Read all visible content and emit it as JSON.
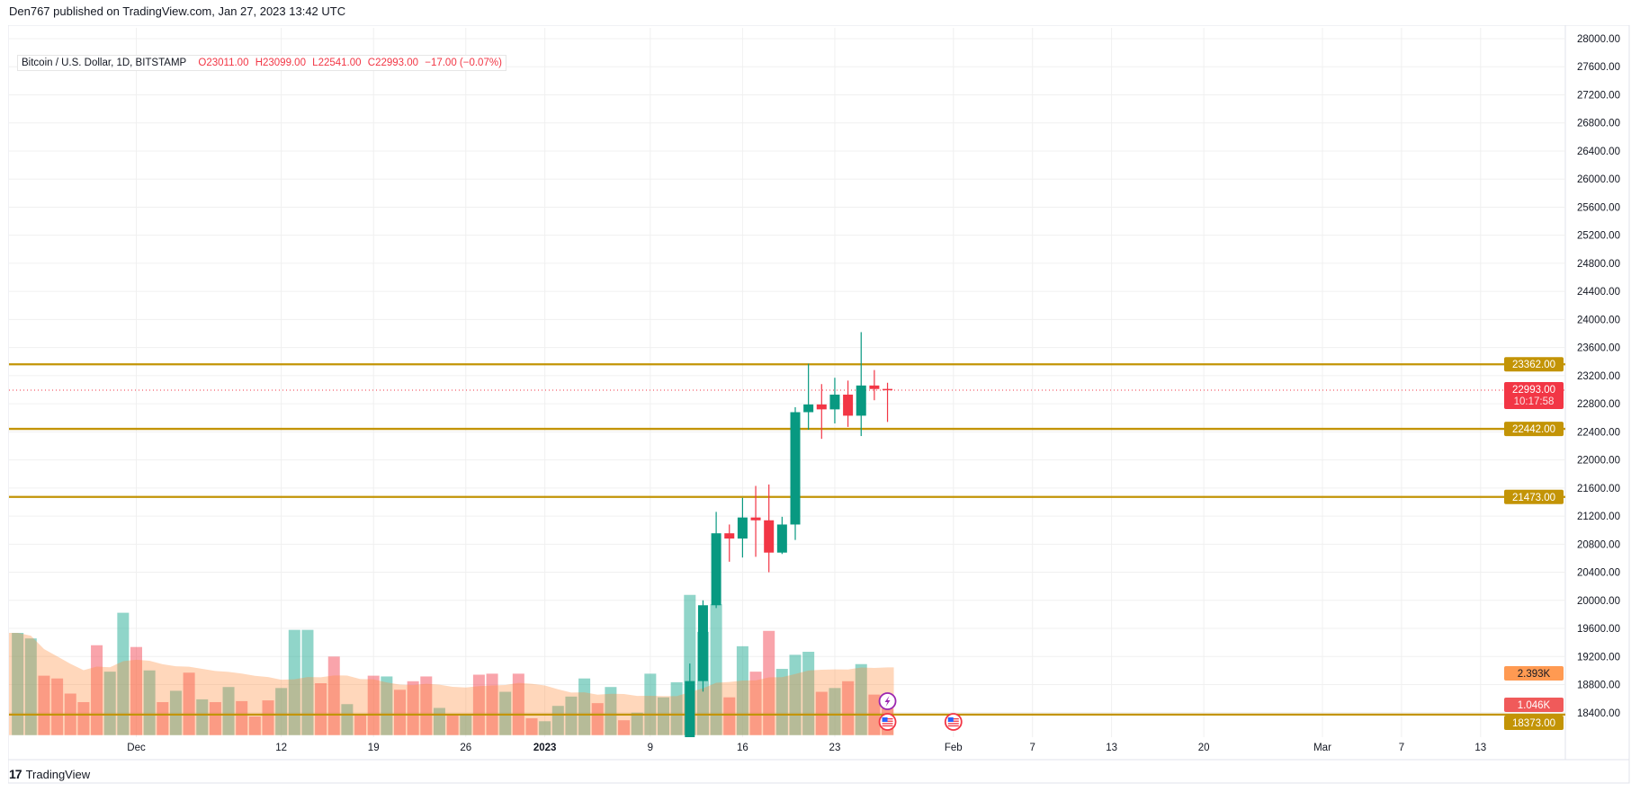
{
  "header": {
    "publish_text": "Den767 published on TradingView.com, Jan 27, 2023 13:42 UTC"
  },
  "legend": {
    "symbol": "Bitcoin / U.S. Dollar, 1D, BITSTAMP",
    "open_label": "O",
    "open": "23011.00",
    "high_label": "H",
    "high": "23099.00",
    "low_label": "L",
    "low": "22541.00",
    "close_label": "C",
    "close": "22993.00",
    "change": "−17.00 (−0.07%)"
  },
  "footer": {
    "brand": "TradingView",
    "logo_mark": "17"
  },
  "colors": {
    "up": "#089981",
    "down": "#f23645",
    "level": "#c39406",
    "volume_ma": "#ff9a52",
    "grid": "#f0f0f0"
  },
  "chart_data": {
    "type": "candlestick",
    "symbol": "BTCUSD",
    "interval": "1D",
    "ylim": [
      18056,
      28300
    ],
    "grid": true,
    "price_ticks": [
      "28000.00",
      "27600.00",
      "27200.00",
      "26800.00",
      "26400.00",
      "26000.00",
      "25600.00",
      "25200.00",
      "24800.00",
      "24400.00",
      "24000.00",
      "23600.00",
      "23200.00",
      "22800.00",
      "22400.00",
      "22000.00",
      "21600.00",
      "21200.00",
      "20800.00",
      "20400.00",
      "20000.00",
      "19600.00",
      "19200.00",
      "18800.00",
      "18400.00"
    ],
    "x_ticks": [
      {
        "date": "2022-12-01",
        "label": "Dec"
      },
      {
        "date": "2022-12-12",
        "label": "12"
      },
      {
        "date": "2022-12-19",
        "label": "19"
      },
      {
        "date": "2022-12-26",
        "label": "26"
      },
      {
        "date": "2023-01-01",
        "label": "2023",
        "bold": true
      },
      {
        "date": "2023-01-09",
        "label": "9"
      },
      {
        "date": "2023-01-16",
        "label": "16"
      },
      {
        "date": "2023-01-23",
        "label": "23"
      },
      {
        "date": "2023-02-01",
        "label": "Feb"
      },
      {
        "date": "2023-02-07",
        "label": "7"
      },
      {
        "date": "2023-02-13",
        "label": "13"
      },
      {
        "date": "2023-02-20",
        "label": "20"
      },
      {
        "date": "2023-03-01",
        "label": "Mar"
      },
      {
        "date": "2023-03-07",
        "label": "7"
      },
      {
        "date": "2023-03-13",
        "label": "13"
      }
    ],
    "candles": [
      {
        "date": "2023-01-12",
        "o": 17943,
        "h": 19100,
        "l": 17900,
        "c": 18850
      },
      {
        "date": "2023-01-13",
        "o": 18850,
        "h": 20000,
        "l": 18700,
        "c": 19930
      },
      {
        "date": "2023-01-14",
        "o": 19930,
        "h": 21260,
        "l": 19890,
        "c": 20955
      },
      {
        "date": "2023-01-15",
        "o": 20955,
        "h": 21080,
        "l": 20550,
        "c": 20880
      },
      {
        "date": "2023-01-16",
        "o": 20880,
        "h": 21460,
        "l": 20610,
        "c": 21180
      },
      {
        "date": "2023-01-17",
        "o": 21180,
        "h": 21630,
        "l": 20620,
        "c": 21140
      },
      {
        "date": "2023-01-18",
        "o": 21140,
        "h": 21650,
        "l": 20400,
        "c": 20680
      },
      {
        "date": "2023-01-19",
        "o": 20680,
        "h": 21190,
        "l": 20660,
        "c": 21080
      },
      {
        "date": "2023-01-20",
        "o": 21080,
        "h": 22750,
        "l": 20860,
        "c": 22680
      },
      {
        "date": "2023-01-21",
        "o": 22680,
        "h": 23370,
        "l": 22430,
        "c": 22790
      },
      {
        "date": "2023-01-22",
        "o": 22790,
        "h": 23080,
        "l": 22300,
        "c": 22720
      },
      {
        "date": "2023-01-23",
        "o": 22720,
        "h": 23170,
        "l": 22520,
        "c": 22930
      },
      {
        "date": "2023-01-24",
        "o": 22930,
        "h": 23130,
        "l": 22470,
        "c": 22630
      },
      {
        "date": "2023-01-25",
        "o": 22630,
        "h": 23820,
        "l": 22340,
        "c": 23060
      },
      {
        "date": "2023-01-26",
        "o": 23060,
        "h": 23280,
        "l": 22850,
        "c": 23010
      },
      {
        "date": "2023-01-27",
        "o": 23011,
        "h": 23099,
        "l": 22541,
        "c": 22993
      }
    ],
    "volume_start_date": "2022-11-22",
    "volume_k": [
      4.06,
      3.84,
      2.36,
      2.25,
      1.65,
      1.31,
      3.57,
      2.52,
      4.86,
      3.5,
      2.57,
      1.31,
      1.76,
      2.48,
      1.42,
      1.31,
      1.91,
      1.35,
      0.74,
      1.38,
      1.87,
      4.18,
      4.18,
      2.06,
      3.12,
      1.23,
      0.78,
      2.36,
      2.33,
      1.8,
      2.14,
      2.33,
      1.08,
      0.82,
      0.82,
      2.4,
      2.44,
      1.72,
      2.44,
      0.67,
      0.55,
      1.16,
      1.53,
      2.25,
      1.27,
      1.91,
      0.59,
      0.89,
      2.44,
      1.5,
      2.1,
      5.57,
      4.1,
      5.2,
      1.5,
      3.53,
      2.52,
      4.14,
      2.63,
      3.19,
      3.31,
      1.72,
      1.87,
      2.14,
      2.82,
      1.61,
      1.046
    ],
    "volume_up": [
      1,
      1,
      0,
      0,
      0,
      0,
      0,
      1,
      1,
      0,
      1,
      0,
      1,
      0,
      1,
      0,
      1,
      0,
      0,
      0,
      1,
      1,
      1,
      0,
      0,
      1,
      0,
      0,
      1,
      0,
      0,
      0,
      1,
      0,
      1,
      0,
      0,
      1,
      0,
      0,
      1,
      1,
      1,
      1,
      0,
      1,
      0,
      1,
      1,
      1,
      1,
      1,
      1,
      1,
      0,
      1,
      0,
      0,
      1,
      1,
      1,
      0,
      1,
      0,
      1,
      0,
      0
    ],
    "horizontal_levels": [
      {
        "price": 23362,
        "label": "23362.00"
      },
      {
        "price": 22442,
        "label": "22442.00"
      },
      {
        "price": 21473,
        "label": "21473.00"
      },
      {
        "price": 18373,
        "label": "18373.00"
      }
    ],
    "last_price": {
      "price": 22993,
      "label": "22993.00",
      "countdown": "10:17:58"
    },
    "volume_ma_label": "2.393K",
    "volume_ma_value_k": 2.393,
    "last_volume_label": "1.046K",
    "events": [
      {
        "date": "2023-01-27",
        "type": "lightning",
        "row": 0
      },
      {
        "date": "2023-01-27",
        "type": "us-flag",
        "row": 1
      },
      {
        "date": "2023-02-01",
        "type": "us-flag",
        "row": 1
      }
    ]
  }
}
